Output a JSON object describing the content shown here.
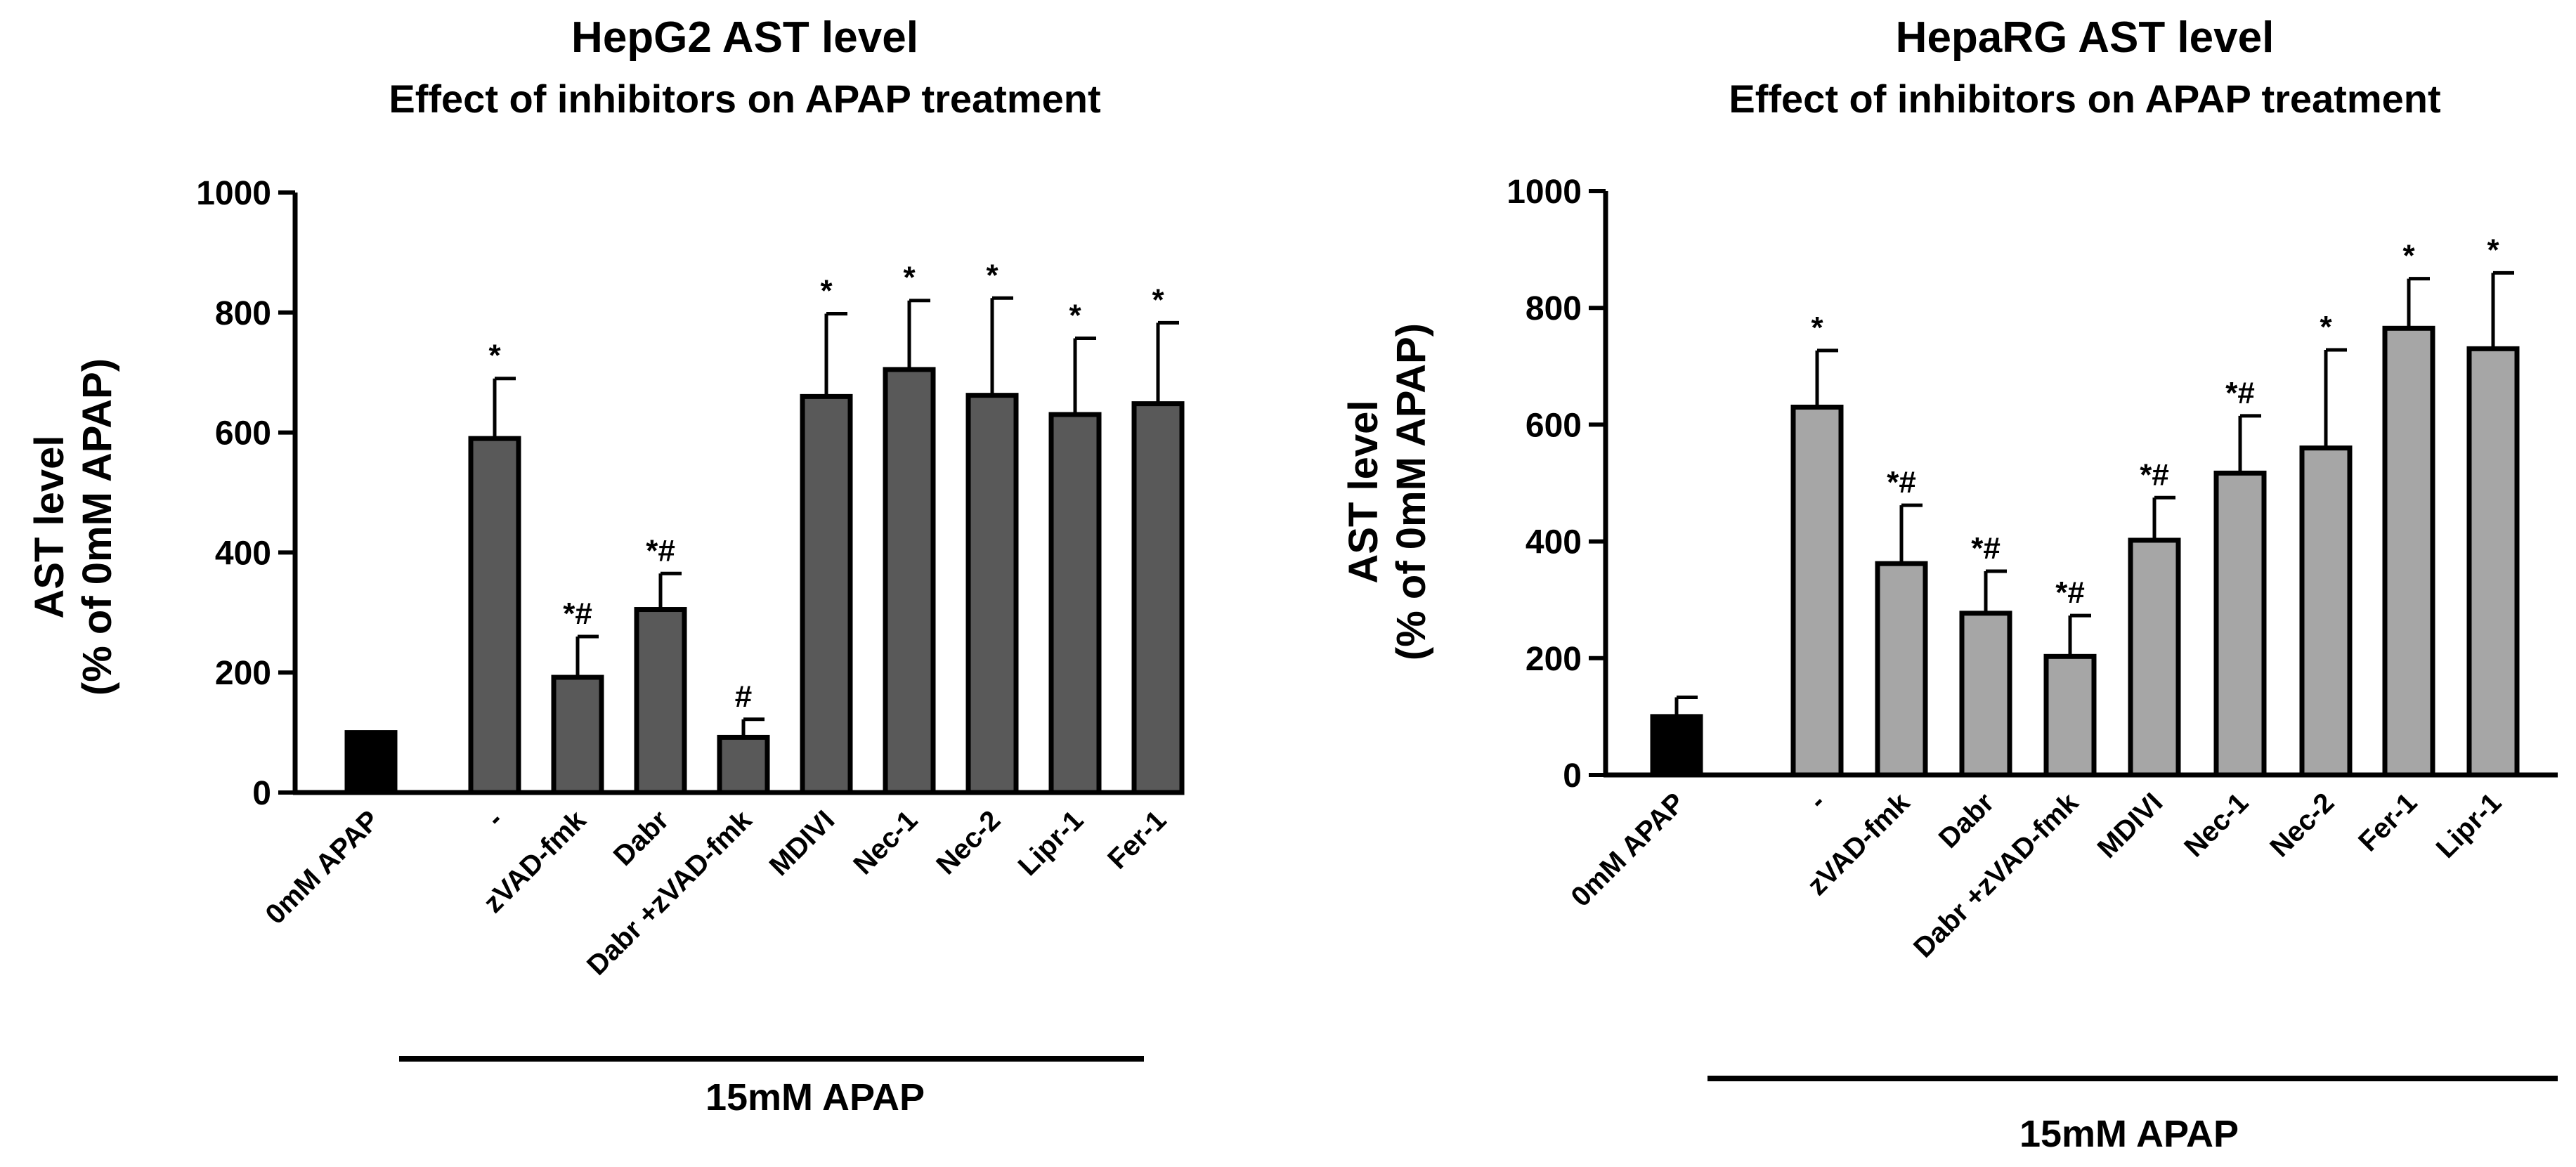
{
  "chart_data": [
    {
      "type": "bar",
      "title": "HepG2 AST level",
      "subtitle": "Effect of inhibitors on APAP treatment",
      "ylabel_line1": "AST level",
      "ylabel_line2": "(% of 0mM APAP)",
      "xlabel": "",
      "ylim": [
        0,
        1000
      ],
      "yticks": [
        "0",
        "200",
        "400",
        "600",
        "800",
        "1000"
      ],
      "group_label": "15mM APAP",
      "categories": [
        "0mM APAP",
        "-",
        "zVAD-fmk",
        "Dabr",
        "Dabr +zVAD-fmk",
        "MDIVI",
        "Nec-1",
        "Nec-2",
        "Lipr-1",
        "Fer-1"
      ],
      "values": [
        100,
        590,
        192,
        305,
        92,
        660,
        705,
        662,
        630,
        648
      ],
      "errors": [
        0,
        100,
        68,
        60,
        30,
        138,
        115,
        162,
        127,
        135
      ],
      "annotations": [
        "",
        "*",
        "*#",
        "*#",
        "#",
        "*",
        "*",
        "*",
        "*",
        "*"
      ],
      "colors": [
        "#000000",
        "#595959",
        "#595959",
        "#595959",
        "#595959",
        "#595959",
        "#595959",
        "#595959",
        "#595959",
        "#595959"
      ],
      "grid": false
    },
    {
      "type": "bar",
      "title": "HepaRG AST level",
      "subtitle": "Effect of inhibitors on APAP treatment",
      "ylabel_line1": "AST level",
      "ylabel_line2": "(% of 0mM APAP)",
      "xlabel": "",
      "ylim": [
        0,
        1000
      ],
      "yticks": [
        "0",
        "200",
        "400",
        "600",
        "800",
        "1000"
      ],
      "group_label": "15mM APAP",
      "categories": [
        "0mM APAP",
        "-",
        "zVAD-fmk",
        "Dabr",
        "Dabr +zVAD-fmk",
        "MDIVI",
        "Nec-1",
        "Nec-2",
        "Fer-1",
        "Lipr-1"
      ],
      "values": [
        100,
        630,
        362,
        277,
        203,
        402,
        517,
        560,
        765,
        730
      ],
      "errors": [
        33,
        97,
        100,
        72,
        70,
        73,
        98,
        168,
        85,
        130
      ],
      "annotations": [
        "",
        "*",
        "*#",
        "*#",
        "*#",
        "*#",
        "*#",
        "*",
        "*",
        "*"
      ],
      "colors": [
        "#000000",
        "#a6a6a6",
        "#a6a6a6",
        "#a6a6a6",
        "#a6a6a6",
        "#a6a6a6",
        "#a6a6a6",
        "#a6a6a6",
        "#a6a6a6",
        "#a6a6a6"
      ],
      "grid": false
    }
  ]
}
